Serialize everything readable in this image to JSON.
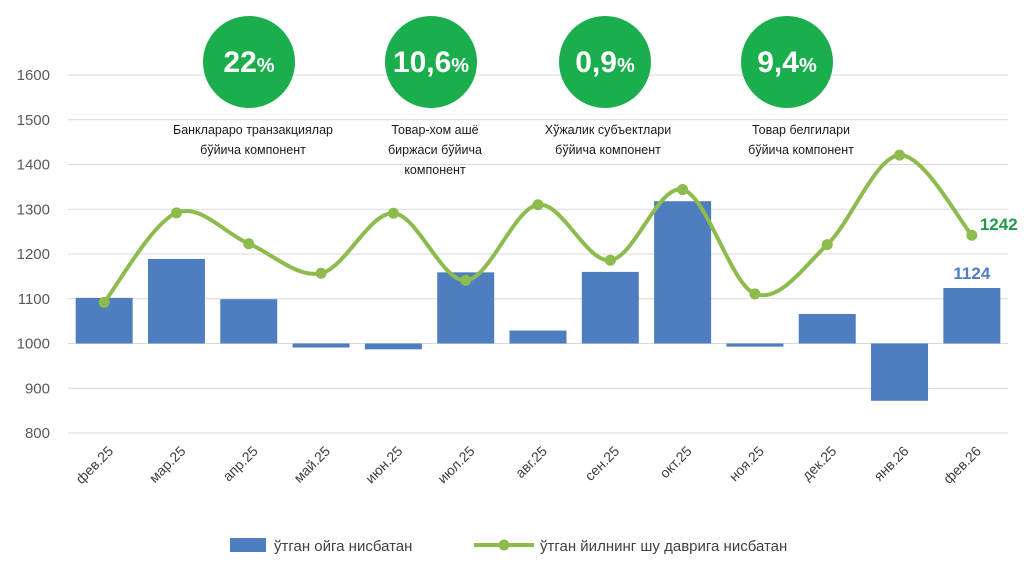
{
  "chart_data": {
    "type": "bar",
    "categories": [
      "фев.25",
      "мар.25",
      "апр.25",
      "май.25",
      "июн.25",
      "июл.25",
      "авг.25",
      "сен.25",
      "окт.25",
      "ноя.25",
      "дек.25",
      "янв.26",
      "фев.26"
    ],
    "ylim": [
      800,
      1600
    ],
    "yticks": [
      800,
      900,
      1000,
      1100,
      1200,
      1300,
      1400,
      1500,
      1600
    ],
    "bar_baseline": 1000,
    "grid": true,
    "legend_position": "bottom",
    "series": [
      {
        "name": "ўтган ойга нисбатан",
        "type": "bar",
        "color": "#4f7ec0",
        "values": [
          1102,
          1189,
          1099,
          991,
          987,
          1159,
          1029,
          1160,
          1318,
          993,
          1066,
          872,
          1124
        ],
        "end_label": "1124"
      },
      {
        "name": "ўтган йилнинг шу даврига нисбатан",
        "type": "line",
        "color": "#8dbb4e",
        "values": [
          1092,
          1292,
          1223,
          1157,
          1291,
          1141,
          1310,
          1186,
          1344,
          1111,
          1221,
          1421,
          1242
        ],
        "end_label": "1242",
        "end_label_color": "#1e9a4a"
      }
    ],
    "annotations": [
      {
        "value": "22",
        "unit": "%",
        "caption": [
          "Банклараро транзакциялар",
          "бўйича компонент"
        ]
      },
      {
        "value": "10,6",
        "unit": "%",
        "caption": [
          "Товар-хом ашё",
          "биржаси бўйича",
          "компонент"
        ]
      },
      {
        "value": "0,9",
        "unit": "%",
        "caption": [
          "Хўжалик субъектлари",
          "бўйича компонент"
        ]
      },
      {
        "value": "9,4",
        "unit": "%",
        "caption": [
          "Товар белгилари",
          "бўйича компонент"
        ]
      }
    ],
    "annotation_color": "#1aae4c"
  }
}
